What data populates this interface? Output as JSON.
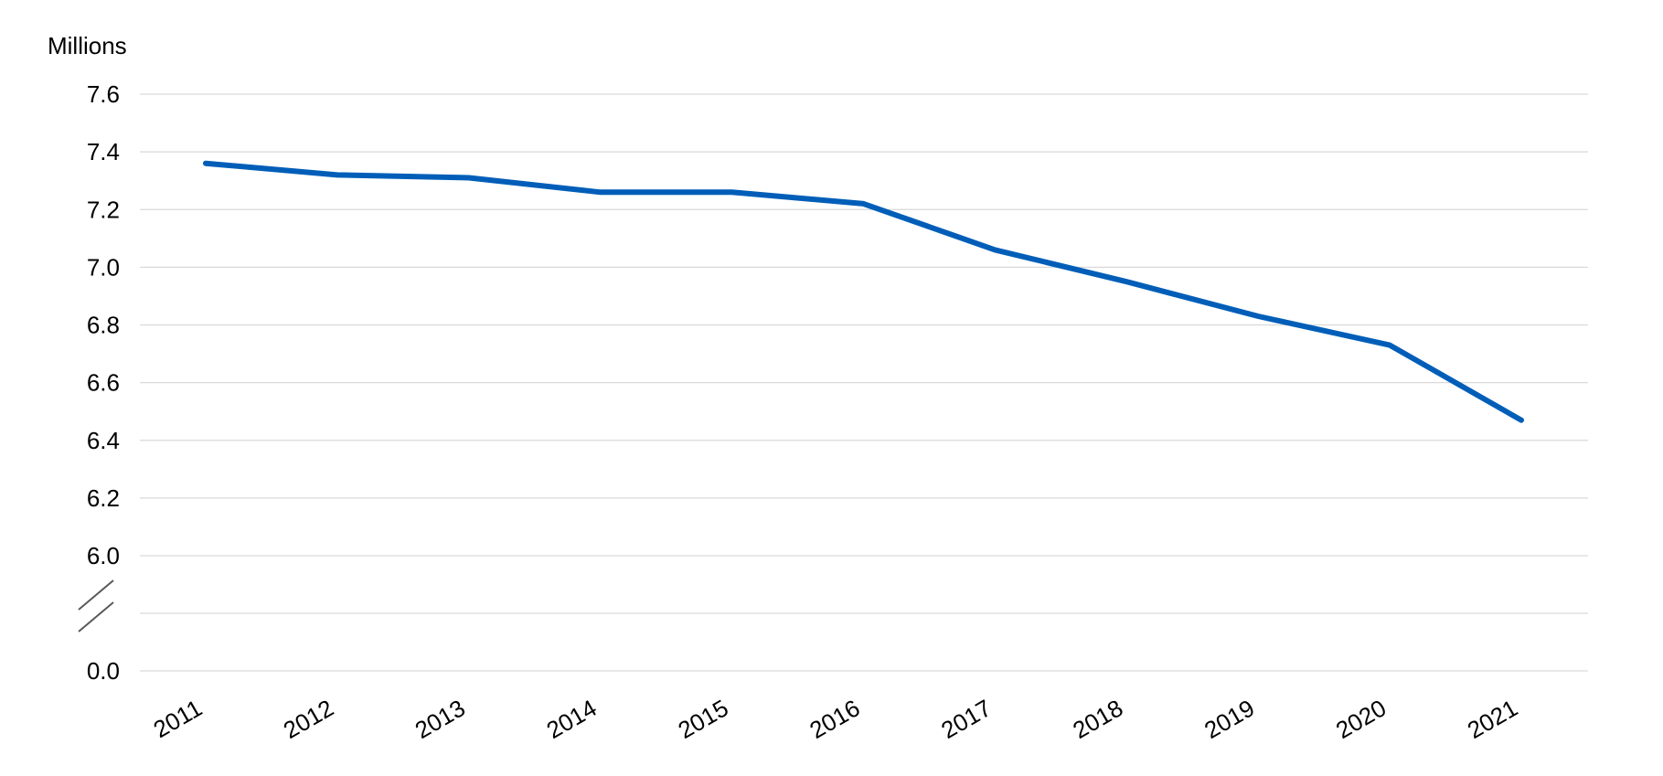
{
  "chart_data": {
    "type": "line",
    "unit_label": "Millions",
    "categories": [
      "2011",
      "2012",
      "2013",
      "2014",
      "2015",
      "2016",
      "2017",
      "2018",
      "2019",
      "2020",
      "2021"
    ],
    "series": [
      {
        "values": [
          7.36,
          7.32,
          7.31,
          7.26,
          7.26,
          7.22,
          7.06,
          6.95,
          6.83,
          6.73,
          6.47
        ],
        "color": "#005EB8"
      }
    ],
    "y_ticks": [
      "0.0",
      "6.0",
      "6.2",
      "6.4",
      "6.6",
      "6.8",
      "7.0",
      "7.2",
      "7.4",
      "7.6"
    ],
    "ylim": [
      6.0,
      7.6
    ],
    "y_axis_break": true,
    "grid": true,
    "x_label_rotation_deg": -30
  }
}
